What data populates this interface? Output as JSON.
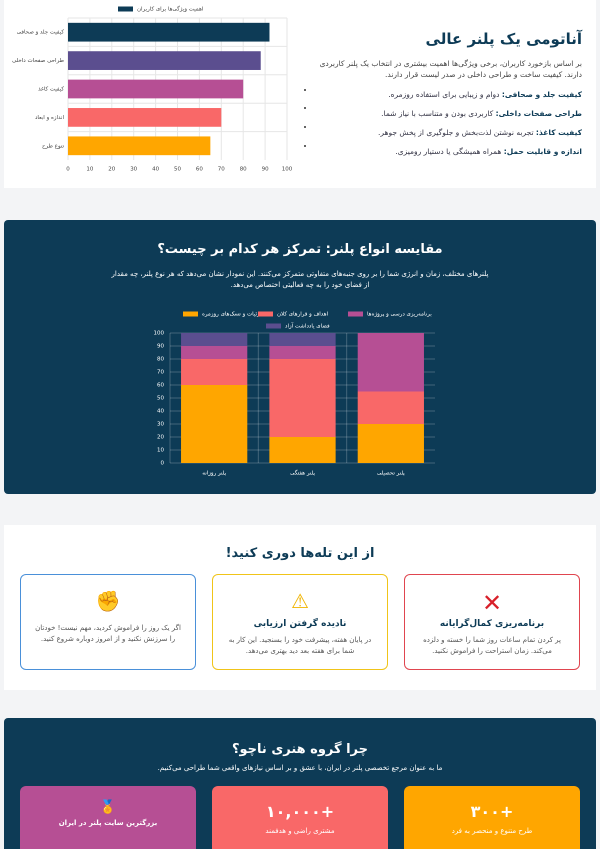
{
  "chart_data": [
    {
      "type": "bar",
      "orientation": "horizontal",
      "categories": [
        "کیفیت جلد و صحافی",
        "طراحی صفحات داخلی",
        "کیفیت کاغذ",
        "اندازه و ابعاد",
        "تنوع طرح"
      ],
      "series": [
        {
          "name": "اهمیت ویژگی‌ها برای کاربران",
          "color": "#0d3b56",
          "values": [
            92,
            88,
            80,
            70,
            65
          ]
        }
      ],
      "colors": [
        "#0d3b56",
        "#5b4e8f",
        "#b64f94",
        "#f96868",
        "#ffa600"
      ],
      "xlim": [
        0,
        100
      ],
      "xticks": [
        0,
        10,
        20,
        30,
        40,
        50,
        60,
        70,
        80,
        90,
        100
      ],
      "grid": true
    },
    {
      "type": "stacked_bar",
      "categories": [
        "پلنر روزانه",
        "پلنر هفتگی",
        "پلنر تحصیلی"
      ],
      "series": [
        {
          "name": "جزئیات و تسک‌های روزمره",
          "color": "#ffa600",
          "values": [
            60,
            20,
            30
          ]
        },
        {
          "name": "اهداف و قرارهای کلان",
          "color": "#f96868",
          "values": [
            20,
            60,
            25
          ]
        },
        {
          "name": "برنامه‌ریزی درسی و پروژه‌ها",
          "color": "#b64f94",
          "values": [
            10,
            10,
            45
          ]
        },
        {
          "name": "فضای یادداشت آزاد",
          "color": "#5b4e8f",
          "values": [
            10,
            10,
            0
          ]
        }
      ],
      "ylim": [
        0,
        100
      ],
      "yticks": [
        0,
        10,
        20,
        30,
        40,
        50,
        60,
        70,
        80,
        90,
        100
      ],
      "grid": true
    }
  ],
  "anatomy": {
    "title": "آناتومی یک پلنر عالی",
    "intro": "بر اساس بازخورد کاربران، برخی ویژگی‌ها اهمیت بیشتری در انتخاب یک پلنر کاربردی دارند. کیفیت ساخت و طراحی داخلی در صدر لیست قرار دارند.",
    "points": [
      {
        "label": "کیفیت جلد و صحافی:",
        "text": "دوام و زیبایی برای استفاده روزمره."
      },
      {
        "label": "طراحی صفحات داخلی:",
        "text": "کاربردی بودن و متناسب با نیاز شما."
      },
      {
        "label": "کیفیت کاغذ:",
        "text": "تجربه نوشتن لذت‌بخش و جلوگیری از پخش جوهر."
      },
      {
        "label": "اندازه و قابلیت حمل:",
        "text": "همراه همیشگی یا دستیار رومیزی."
      }
    ]
  },
  "comparison": {
    "title": "مقایسه انواع پلنر: تمرکز هر کدام بر چیست؟",
    "intro": "پلنرهای مختلف، زمان و انرژی شما را بر روی جنبه‌های متفاوتی متمرکز می‌کنند. این نمودار نشان می‌دهد که هر نوع پلنر، چه مقدار از فضای خود را به چه فعالیتی اختصاص می‌دهد."
  },
  "pitfalls": {
    "title": "از این تله‌ها دوری کنید!",
    "cards": [
      {
        "title": "برنامه‌ریزی کمال‌گرایانه",
        "text": "پر کردن تمام ساعات روز شما را خسته و دلزده می‌کند. زمان استراحت را فراموش نکنید."
      },
      {
        "title": "نادیده گرفتن ارزیابی",
        "text": "در پایان هفته، پیشرفت خود را بسنجید. این کار به شما برای هفته بعد دید بهتری می‌دهد."
      },
      {
        "text": "اگر یک روز را فراموش کردید، مهم نیست! خودتان را سرزنش نکنید و از امروز دوباره شروع کنید."
      }
    ]
  },
  "why": {
    "title": "چرا گروه هنری ناچو؟",
    "intro": "ما به عنوان مرجع تخصصی پلنر در ایران، با عشق و بر اساس نیازهای واقعی شما طراحی می‌کنیم.",
    "stats": [
      {
        "value": "+۳۰۰",
        "label": "طرح متنوع و منحصر به فرد"
      },
      {
        "value": "+۱۰,۰۰۰",
        "label": "مشتری راضی و هدفمند"
      },
      {
        "label": "بزرگترین سایت پلنر در ایران"
      }
    ]
  }
}
